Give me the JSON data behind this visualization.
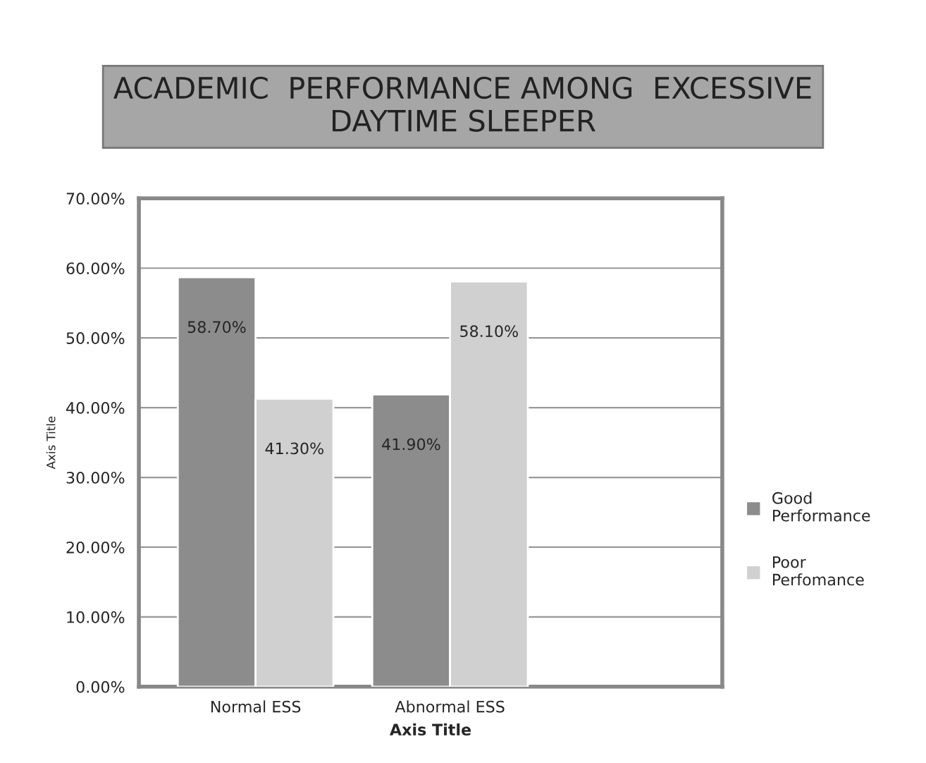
{
  "chart_data": {
    "type": "bar",
    "title": "ACADEMIC  PERFORMANCE AMONG  EXCESSIVE\nDAYTIME SLEEPER",
    "xlabel": "Axis Title",
    "ylabel": "Axis Title",
    "categories": [
      "Normal ESS",
      "Abnormal ESS"
    ],
    "series": [
      {
        "name": "Good\nPerformance",
        "color": "#8c8c8c",
        "values": [
          58.7,
          41.9
        ],
        "value_labels": [
          "58.70%",
          "41.90%"
        ]
      },
      {
        "name": "Poor\nPerfomance",
        "color": "#d0d0d0",
        "values": [
          41.3,
          58.1
        ],
        "value_labels": [
          "41.30%",
          "58.10%"
        ]
      }
    ],
    "ylim": [
      0,
      70
    ],
    "yticks": [
      {
        "value": 0,
        "label": "0.00%"
      },
      {
        "value": 10,
        "label": "10.00%"
      },
      {
        "value": 20,
        "label": "20.00%"
      },
      {
        "value": 30,
        "label": "30.00%"
      },
      {
        "value": 40,
        "label": "40.00%"
      },
      {
        "value": 50,
        "label": "50.00%"
      },
      {
        "value": 60,
        "label": "60.00%"
      },
      {
        "value": 70,
        "label": "70.00%"
      }
    ],
    "grid": "y",
    "legend": "right"
  }
}
